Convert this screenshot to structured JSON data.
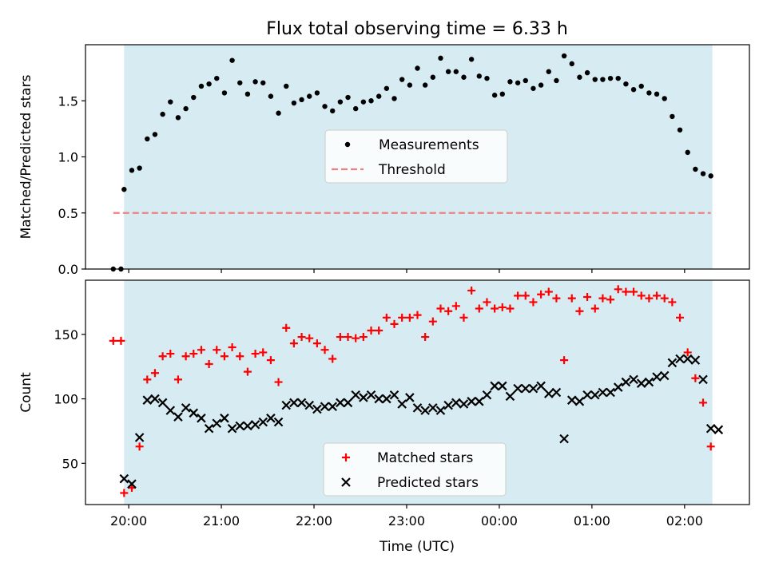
{
  "chart_data": [
    {
      "type": "scatter",
      "title": "Flux total observing time = 6.33 h",
      "xlabel": "",
      "ylabel": "Matched/Predicted stars",
      "xlim": [
        "19:32",
        "02:42"
      ],
      "ylim": [
        0,
        2.0
      ],
      "yticks": [
        0.0,
        0.5,
        1.0,
        1.5
      ],
      "ytick_labels": [
        "0.0",
        "0.5",
        "1.0",
        "1.5"
      ],
      "xticks": [
        "20:00",
        "21:00",
        "22:00",
        "23:00",
        "00:00",
        "01:00",
        "02:00"
      ],
      "shaded_span": [
        "19:57",
        "02:18"
      ],
      "legend_position": "center",
      "series": [
        {
          "name": "Measurements",
          "style": "dots",
          "color": "#000000",
          "x": [
            "19:50",
            "19:55",
            "19:57",
            "20:02",
            "20:07",
            "20:12",
            "20:17",
            "20:22",
            "20:27",
            "20:32",
            "20:37",
            "20:42",
            "20:47",
            "20:52",
            "20:57",
            "21:02",
            "21:07",
            "21:12",
            "21:17",
            "21:22",
            "21:27",
            "21:32",
            "21:37",
            "21:42",
            "21:47",
            "21:52",
            "21:57",
            "22:02",
            "22:07",
            "22:12",
            "22:17",
            "22:22",
            "22:27",
            "22:32",
            "22:37",
            "22:42",
            "22:47",
            "22:52",
            "22:57",
            "23:02",
            "23:07",
            "23:12",
            "23:17",
            "23:22",
            "23:27",
            "23:32",
            "23:37",
            "23:42",
            "23:47",
            "23:52",
            "23:57",
            "00:02",
            "00:07",
            "00:12",
            "00:17",
            "00:22",
            "00:27",
            "00:32",
            "00:37",
            "00:42",
            "00:47",
            "00:52",
            "00:57",
            "01:02",
            "01:07",
            "01:12",
            "01:17",
            "01:22",
            "01:27",
            "01:32",
            "01:37",
            "01:42",
            "01:47",
            "01:52",
            "01:57",
            "02:02",
            "02:07",
            "02:12",
            "02:17"
          ],
          "y": [
            0.0,
            0.0,
            0.71,
            0.88,
            0.9,
            1.16,
            1.2,
            1.38,
            1.49,
            1.35,
            1.43,
            1.53,
            1.63,
            1.65,
            1.7,
            1.57,
            1.86,
            1.66,
            1.56,
            1.67,
            1.66,
            1.54,
            1.39,
            1.63,
            1.48,
            1.51,
            1.54,
            1.57,
            1.45,
            1.41,
            1.49,
            1.53,
            1.43,
            1.49,
            1.5,
            1.54,
            1.61,
            1.52,
            1.69,
            1.64,
            1.79,
            1.64,
            1.71,
            1.88,
            1.76,
            1.76,
            1.71,
            1.87,
            1.72,
            1.7,
            1.55,
            1.56,
            1.67,
            1.66,
            1.68,
            1.61,
            1.64,
            1.76,
            1.68,
            1.9,
            1.83,
            1.71,
            1.75,
            1.69,
            1.69,
            1.7,
            1.7,
            1.65,
            1.6,
            1.63,
            1.57,
            1.56,
            1.52,
            1.36,
            1.24,
            1.04,
            0.89,
            0.85,
            0.83
          ]
        },
        {
          "name": "Threshold",
          "style": "dashed",
          "color": "#f08080",
          "x": [
            "19:50",
            "02:17"
          ],
          "y": [
            0.5,
            0.5
          ]
        }
      ]
    },
    {
      "type": "scatter",
      "title": "",
      "xlabel": "Time (UTC)",
      "ylabel": "Count",
      "xlim": [
        "19:32",
        "02:42"
      ],
      "ylim": [
        18,
        192
      ],
      "yticks": [
        50,
        100,
        150
      ],
      "ytick_labels": [
        "50",
        "100",
        "150"
      ],
      "xticks": [
        "20:00",
        "21:00",
        "22:00",
        "23:00",
        "00:00",
        "01:00",
        "02:00"
      ],
      "xtick_labels": [
        "20:00",
        "21:00",
        "22:00",
        "23:00",
        "00:00",
        "01:00",
        "02:00"
      ],
      "shaded_span": [
        "19:57",
        "02:18"
      ],
      "legend_position": "lower center",
      "series": [
        {
          "name": "Matched stars",
          "style": "plus",
          "color": "#ff0000",
          "x": [
            "19:50",
            "19:55",
            "19:57",
            "20:02",
            "20:07",
            "20:12",
            "20:17",
            "20:22",
            "20:27",
            "20:32",
            "20:37",
            "20:42",
            "20:47",
            "20:52",
            "20:57",
            "21:02",
            "21:07",
            "21:12",
            "21:17",
            "21:22",
            "21:27",
            "21:32",
            "21:37",
            "21:42",
            "21:47",
            "21:52",
            "21:57",
            "22:02",
            "22:07",
            "22:12",
            "22:17",
            "22:22",
            "22:27",
            "22:32",
            "22:37",
            "22:42",
            "22:47",
            "22:52",
            "22:57",
            "23:02",
            "23:07",
            "23:12",
            "23:17",
            "23:22",
            "23:27",
            "23:32",
            "23:37",
            "23:42",
            "23:47",
            "23:52",
            "23:57",
            "00:02",
            "00:07",
            "00:12",
            "00:17",
            "00:22",
            "00:27",
            "00:32",
            "00:37",
            "00:42",
            "00:47",
            "00:52",
            "00:57",
            "01:02",
            "01:07",
            "01:12",
            "01:17",
            "01:22",
            "01:27",
            "01:32",
            "01:37",
            "01:42",
            "01:47",
            "01:52",
            "01:57",
            "02:02",
            "02:07",
            "02:12",
            "02:17"
          ],
          "y": [
            145,
            145,
            27,
            31,
            63,
            115,
            120,
            133,
            135,
            115,
            133,
            135,
            138,
            127,
            138,
            133,
            140,
            133,
            121,
            135,
            136,
            130,
            113,
            155,
            143,
            148,
            147,
            143,
            138,
            131,
            148,
            148,
            147,
            148,
            153,
            153,
            163,
            158,
            163,
            163,
            165,
            148,
            160,
            170,
            168,
            172,
            163,
            184,
            170,
            175,
            170,
            171,
            170,
            180,
            180,
            175,
            181,
            183,
            178,
            130,
            178,
            168,
            179,
            170,
            178,
            177,
            185,
            183,
            183,
            180,
            178,
            180,
            178,
            175,
            163,
            136,
            116,
            97,
            63
          ]
        },
        {
          "name": "Predicted stars",
          "style": "x",
          "color": "#000000",
          "x": [
            "19:57",
            "20:02",
            "20:07",
            "20:12",
            "20:17",
            "20:22",
            "20:27",
            "20:32",
            "20:37",
            "20:42",
            "20:47",
            "20:52",
            "20:57",
            "21:02",
            "21:07",
            "21:12",
            "21:17",
            "21:22",
            "21:27",
            "21:32",
            "21:37",
            "21:42",
            "21:47",
            "21:52",
            "21:57",
            "22:02",
            "22:07",
            "22:12",
            "22:17",
            "22:22",
            "22:27",
            "22:32",
            "22:37",
            "22:42",
            "22:47",
            "22:52",
            "22:57",
            "23:02",
            "23:07",
            "23:12",
            "23:17",
            "23:22",
            "23:27",
            "23:32",
            "23:37",
            "23:42",
            "23:47",
            "23:52",
            "23:57",
            "00:02",
            "00:07",
            "00:12",
            "00:17",
            "00:22",
            "00:27",
            "00:32",
            "00:37",
            "00:42",
            "00:47",
            "00:52",
            "00:57",
            "01:02",
            "01:07",
            "01:12",
            "01:17",
            "01:22",
            "01:27",
            "01:32",
            "01:37",
            "01:42",
            "01:47",
            "01:52",
            "01:57",
            "02:02",
            "02:07",
            "02:12",
            "02:17",
            "02:22"
          ],
          "y": [
            38,
            34,
            70,
            99,
            100,
            97,
            91,
            86,
            93,
            89,
            85,
            77,
            81,
            85,
            77,
            79,
            79,
            80,
            82,
            85,
            82,
            95,
            97,
            97,
            95,
            92,
            94,
            94,
            97,
            97,
            103,
            101,
            103,
            100,
            100,
            103,
            96,
            101,
            93,
            91,
            93,
            91,
            95,
            97,
            96,
            98,
            98,
            103,
            110,
            110,
            102,
            108,
            108,
            108,
            110,
            104,
            105,
            69,
            99,
            98,
            103,
            103,
            105,
            105,
            109,
            113,
            115,
            112,
            113,
            117,
            118,
            128,
            131,
            131,
            130,
            115,
            77,
            76
          ]
        }
      ]
    }
  ]
}
